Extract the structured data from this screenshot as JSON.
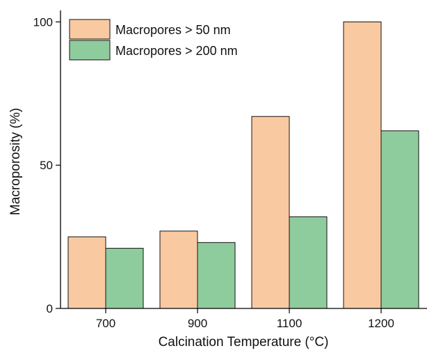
{
  "chart_data": {
    "type": "bar",
    "categories": [
      "700",
      "900",
      "1100",
      "1200"
    ],
    "series": [
      {
        "name": "Macropores > 50 nm",
        "values": [
          25,
          27,
          67,
          100
        ],
        "color": "#f9c9a2"
      },
      {
        "name": "Macropores > 200 nm",
        "values": [
          21,
          23,
          32,
          62
        ],
        "color": "#8fcc9d"
      }
    ],
    "xlabel": "Calcination Temperature (°C)",
    "ylabel": "Macroporosity (%)",
    "ylim": [
      0,
      104
    ],
    "yticks": [
      0,
      50,
      100
    ],
    "grid": false,
    "legend_position": "top-left"
  }
}
